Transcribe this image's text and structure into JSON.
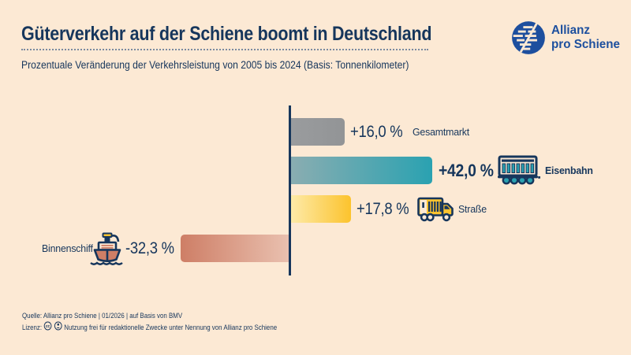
{
  "page": {
    "background_color": "#FCE9D4",
    "text_color": "#16365C",
    "axis_color": "#16365C"
  },
  "logo": {
    "line1": "Allianz",
    "line2": "pro Schiene",
    "brand_color": "#1D4F9E"
  },
  "chart_data": {
    "type": "bar",
    "orientation": "horizontal",
    "title": "Güterverkehr auf der Schiene boomt in Deutschland",
    "subtitle": "Prozentuale Veränderung der Verkehrsleistung von 2005 bis 2024 (Basis: Tonnenkilometer)",
    "unit": "percent",
    "baseline": 0,
    "value_range": [
      -35,
      45
    ],
    "grid": false,
    "legend": false,
    "categories": [
      "Gesamtmarkt",
      "Eisenbahn",
      "Straße",
      "Binnenschiff"
    ],
    "values": [
      16.0,
      42.0,
      17.8,
      -32.3
    ],
    "bars": [
      {
        "category": "Gesamtmarkt",
        "value": 16.0,
        "label": "+16,0 %",
        "icon": "none",
        "emphasized": false,
        "color_from": "#9A9C9E",
        "color_to": "#929496"
      },
      {
        "category": "Eisenbahn",
        "value": 42.0,
        "label": "+42,0 %",
        "icon": "train-wagon",
        "emphasized": true,
        "color_from": "#8AADB1",
        "color_to": "#2AA2B1"
      },
      {
        "category": "Straße",
        "value": 17.8,
        "label": "+17,8 %",
        "icon": "truck",
        "emphasized": false,
        "color_from": "#FDEAA8",
        "color_to": "#FCC32D"
      },
      {
        "category": "Binnenschiff",
        "value": -32.3,
        "label": "-32,3 %",
        "icon": "ship",
        "emphasized": false,
        "color_from": "#CE7E66",
        "color_to": "#E9C0AF"
      }
    ]
  },
  "footer": {
    "source_line": "Quelle: Allianz pro Schiene | 01/2026 | auf Basis von BMV",
    "license_label": "Lizenz:",
    "license_icons": [
      "cc",
      "by"
    ],
    "license_text": "Nutzung frei für redaktionelle Zwecke unter Nennung von Allianz pro Schiene"
  }
}
